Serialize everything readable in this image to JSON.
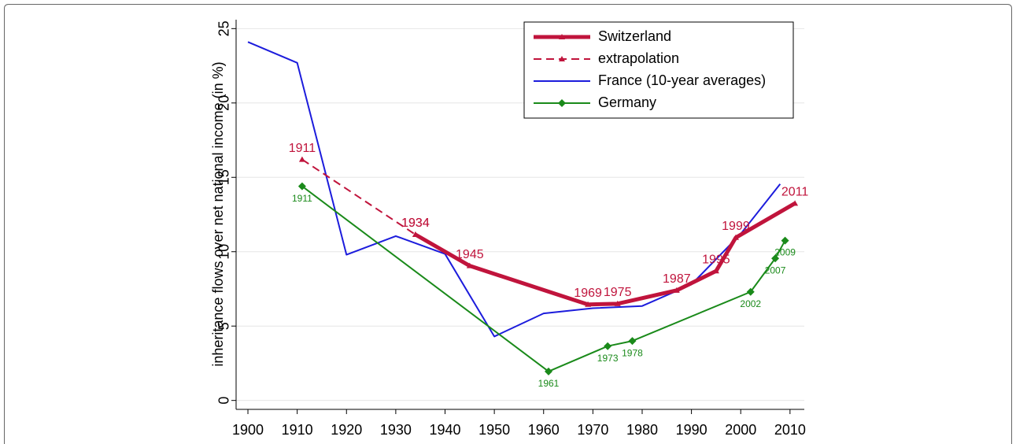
{
  "chart_data": {
    "type": "line",
    "y_axis_label": "inheritance flows over net national income (in %)",
    "xlim": [
      1897.6,
      2012.9
    ],
    "ylim": [
      -0.6,
      25.6
    ],
    "xticks": [
      1900,
      1910,
      1920,
      1930,
      1940,
      1950,
      1960,
      1970,
      1980,
      1990,
      2000,
      2010
    ],
    "yticks": [
      0,
      5,
      10,
      15,
      20,
      25
    ],
    "grid": true,
    "legend": "top-right",
    "series": [
      {
        "name": "Switzerland",
        "color": "#c0143c",
        "line_style": "solid",
        "line_weight": "thick",
        "marker": "triangle",
        "point_labels": true,
        "label_position": "above",
        "x": [
          1934,
          1945,
          1969,
          1975,
          1987,
          1995,
          1999,
          2011
        ],
        "values": [
          11.15,
          9.05,
          6.45,
          6.5,
          7.4,
          8.7,
          10.95,
          13.25
        ]
      },
      {
        "name": "extrapolation",
        "color": "#c0143c",
        "line_style": "dashed",
        "line_weight": "thin",
        "marker": "triangle",
        "point_labels": true,
        "label_position": "above",
        "x": [
          1911,
          1934
        ],
        "values": [
          16.2,
          11.15
        ]
      },
      {
        "name": "France (10-year averages)",
        "color": "#1c1cdc",
        "line_style": "solid",
        "line_weight": "thin",
        "marker": "none",
        "point_labels": false,
        "label_position": "above",
        "x": [
          1900,
          1910,
          1920,
          1930,
          1940,
          1950,
          1960,
          1970,
          1980,
          1990,
          2000,
          2008
        ],
        "values": [
          24.1,
          22.7,
          9.8,
          11.05,
          9.85,
          4.3,
          5.85,
          6.2,
          6.35,
          7.8,
          11.2,
          14.55
        ]
      },
      {
        "name": "Germany",
        "color": "#1a8a1a",
        "line_style": "solid",
        "line_weight": "thin",
        "marker": "diamond",
        "point_labels": true,
        "label_position": "below",
        "x": [
          1911,
          1961,
          1973,
          1978,
          2002,
          2007,
          2009
        ],
        "values": [
          14.4,
          1.95,
          3.65,
          4.0,
          7.3,
          9.55,
          10.75
        ]
      }
    ]
  }
}
